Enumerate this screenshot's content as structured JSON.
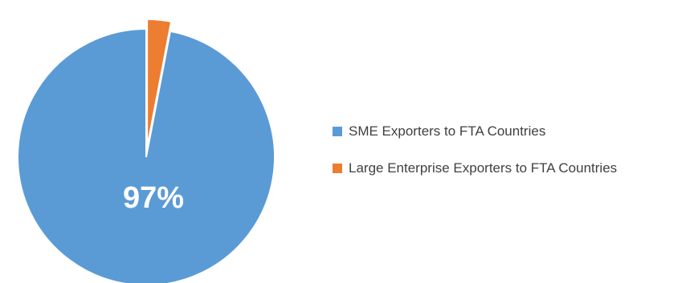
{
  "colors": {
    "sme": "#5B9BD5",
    "large": "#ED7D31"
  },
  "chart_data": {
    "type": "pie",
    "title": "",
    "slices": [
      {
        "name": "SME Exporters to FTA Countries",
        "value": 97,
        "color": "#5B9BD5",
        "label": "97%",
        "exploded": false
      },
      {
        "name": "Large Enterprise Exporters to FTA Countries",
        "value": 3,
        "color": "#ED7D31",
        "label": "",
        "exploded": true
      }
    ],
    "legend_position": "right",
    "start_angle_deg": 0,
    "direction": "counterclockwise"
  }
}
